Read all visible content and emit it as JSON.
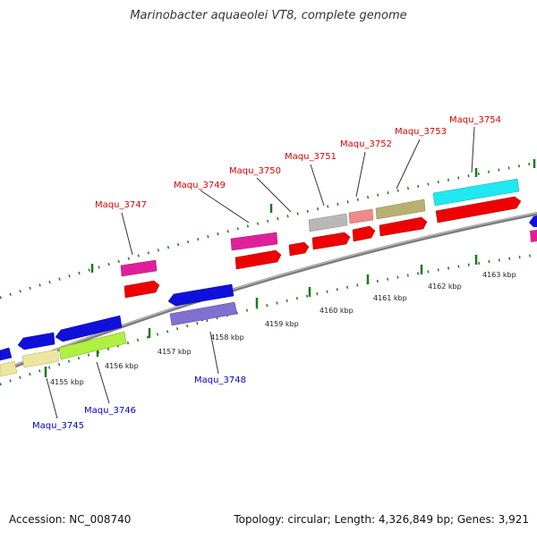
{
  "title": "Marinobacter aquaeolei VT8, complete genome",
  "footer": {
    "accession": "Accession: NC_008740",
    "summary": "Topology: circular; Length: 4,326,849 bp; Genes: 3,921"
  },
  "ruler_labels": [
    "4155 kbp",
    "4156 kbp",
    "4157 kbp",
    "4158 kbp",
    "4159 kbp",
    "4160 kbp",
    "4161 kbp",
    "4162 kbp",
    "4163 kbp"
  ],
  "gene_labels_top": [
    "Maqu_3747",
    "Maqu_3749",
    "Maqu_3750",
    "Maqu_3751",
    "Maqu_3752",
    "Maqu_3753",
    "Maqu_3754"
  ],
  "gene_labels_bottom": [
    "Maqu_3745",
    "Maqu_3746",
    "Maqu_3748"
  ],
  "colors": {
    "forward_label": "#dd0000",
    "reverse_label": "#0000cc",
    "backbone": "#888888",
    "tick": "#1a7a1a"
  }
}
